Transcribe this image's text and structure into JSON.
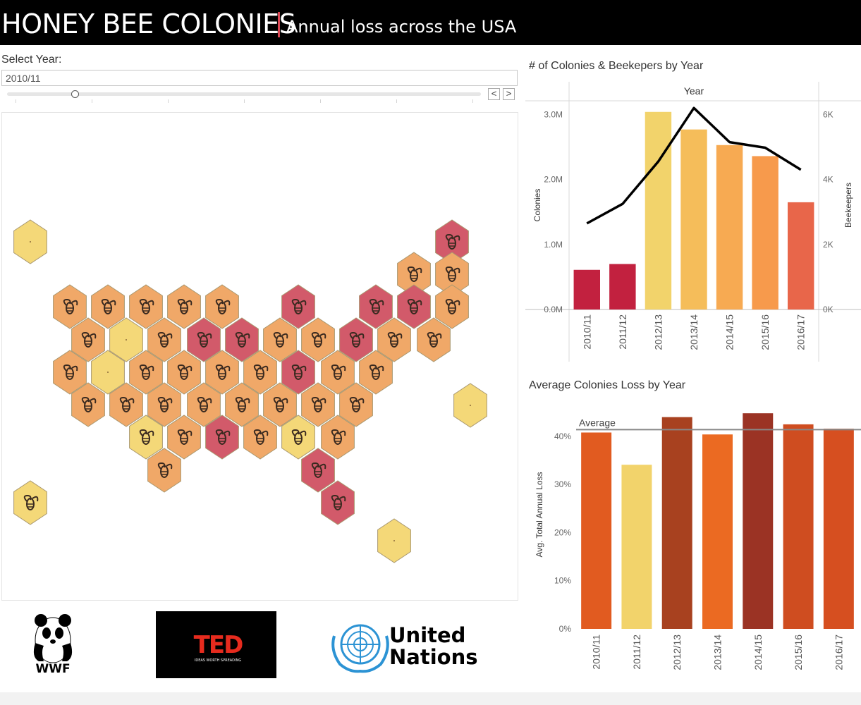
{
  "header": {
    "title": "HONEY BEE COLONIES",
    "subtitle": "Annual loss across the USA",
    "accent_color": "#d94854"
  },
  "year_filter": {
    "label": "Select Year:",
    "value": "2010/11",
    "slider_fraction": 0.143,
    "prev_label": "<",
    "next_label": ">"
  },
  "map": {
    "icon": "bee-icon",
    "colors": {
      "low": "#f4d878",
      "mid": "#f0a868",
      "high": "#d25a6a"
    }
  },
  "colonies_chart": {
    "title": "# of Colonies & Beekepers by Year",
    "column_header": "Year",
    "left_axis_title": "Colonies",
    "right_axis_title": "Beekeepers",
    "left_ticks": [
      "0.0M",
      "1.0M",
      "2.0M",
      "3.0M"
    ],
    "right_ticks": [
      "0K",
      "2K",
      "4K",
      "6K"
    ]
  },
  "loss_chart": {
    "title": "Average Colonies Loss by Year",
    "axis_title": "Avg. Total Annual Loss",
    "ticks": [
      "0%",
      "10%",
      "20%",
      "30%",
      "40%"
    ],
    "reference_label": "Average"
  },
  "chart_data": [
    {
      "type": "bar",
      "title": "# of Colonies & Beekepers by Year",
      "categories": [
        "2010/11",
        "2011/12",
        "2012/13",
        "2013/14",
        "2014/15",
        "2015/16",
        "2016/17"
      ],
      "series": [
        {
          "name": "Colonies",
          "values": [
            0.61,
            0.7,
            3.04,
            2.77,
            2.53,
            2.36,
            1.65
          ]
        },
        {
          "name": "Beekeepers",
          "type": "line",
          "values": [
            2650,
            3250,
            4550,
            6200,
            5150,
            4980,
            4300
          ]
        }
      ],
      "bar_colors": [
        "#c2213f",
        "#c2213f",
        "#f2d36b",
        "#f5bd5a",
        "#f7aa52",
        "#f79a4c",
        "#e8664a"
      ],
      "line_color": "#000000",
      "ylim": [
        0,
        3.2
      ],
      "y2lim": [
        0,
        6400
      ],
      "xlabel": "Year",
      "ylabel": "Colonies",
      "y2label": "Beekeepers"
    },
    {
      "type": "bar",
      "title": "Average Colonies Loss by Year",
      "categories": [
        "2010/11",
        "2011/12",
        "2012/13",
        "2013/14",
        "2014/15",
        "2015/16",
        "2016/17"
      ],
      "values": [
        40.8,
        34.1,
        44.0,
        40.4,
        44.8,
        42.5,
        41.6
      ],
      "bar_colors": [
        "#e15b20",
        "#f2d36b",
        "#a8411f",
        "#eb6a22",
        "#9b3324",
        "#cf4d20",
        "#d64f20"
      ],
      "reference_line": {
        "label": "Average",
        "value": 41.4
      },
      "ylim": [
        0,
        46
      ],
      "ylabel": "Avg. Total Annual Loss"
    }
  ],
  "logos": {
    "wwf": "WWF",
    "ted_main": "TED",
    "ted_tagline": "IDEAS WORTH SPREADING",
    "un_line1": "United",
    "un_line2": "Nations"
  }
}
